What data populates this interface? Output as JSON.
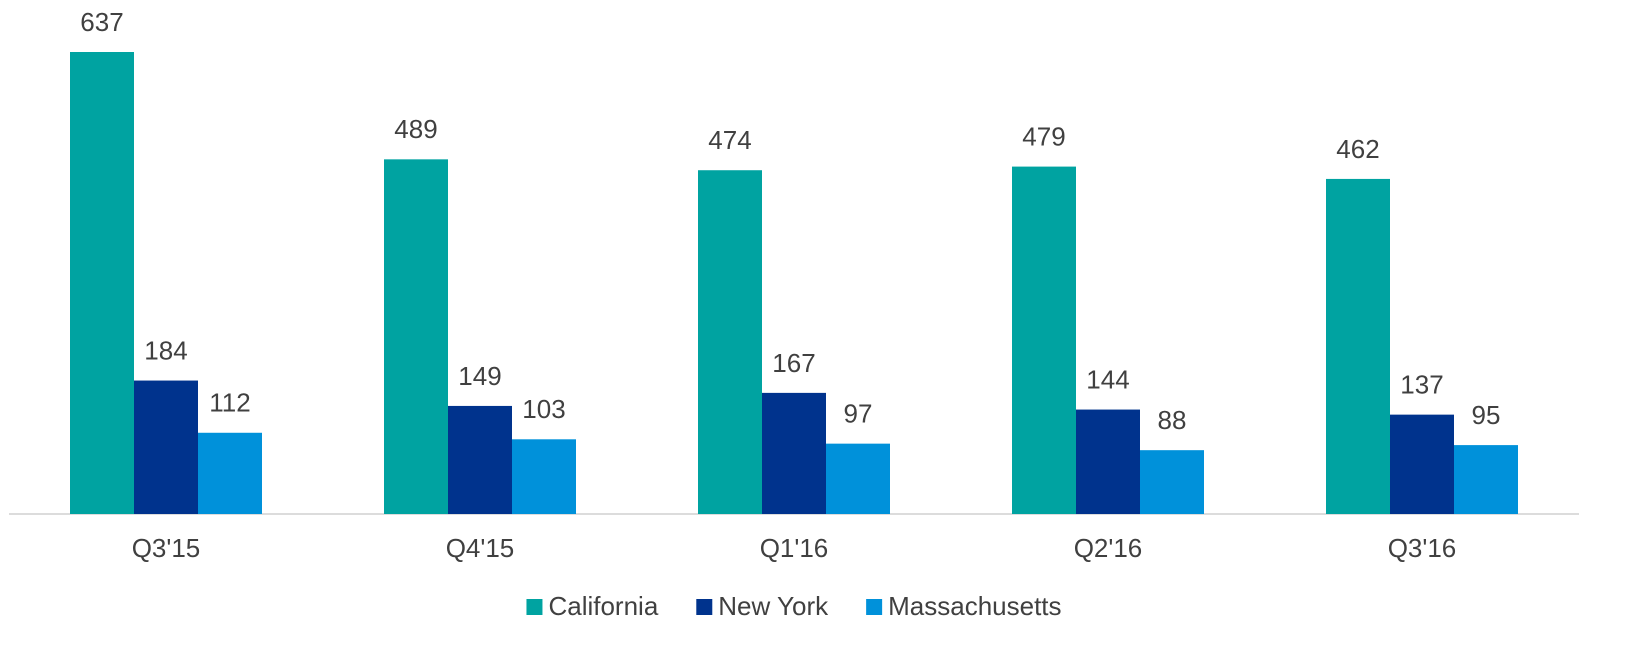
{
  "chart_data": {
    "type": "bar",
    "categories": [
      "Q3'15",
      "Q4'15",
      "Q1'16",
      "Q2'16",
      "Q3'16"
    ],
    "series": [
      {
        "name": "California",
        "color": "#00A3A1",
        "values": [
          637,
          489,
          474,
          479,
          462
        ]
      },
      {
        "name": "New York",
        "color": "#00338D",
        "values": [
          184,
          149,
          167,
          144,
          137
        ]
      },
      {
        "name": "Massachusetts",
        "color": "#0091DA",
        "values": [
          112,
          103,
          97,
          88,
          95
        ]
      }
    ],
    "legend": "bottom"
  }
}
